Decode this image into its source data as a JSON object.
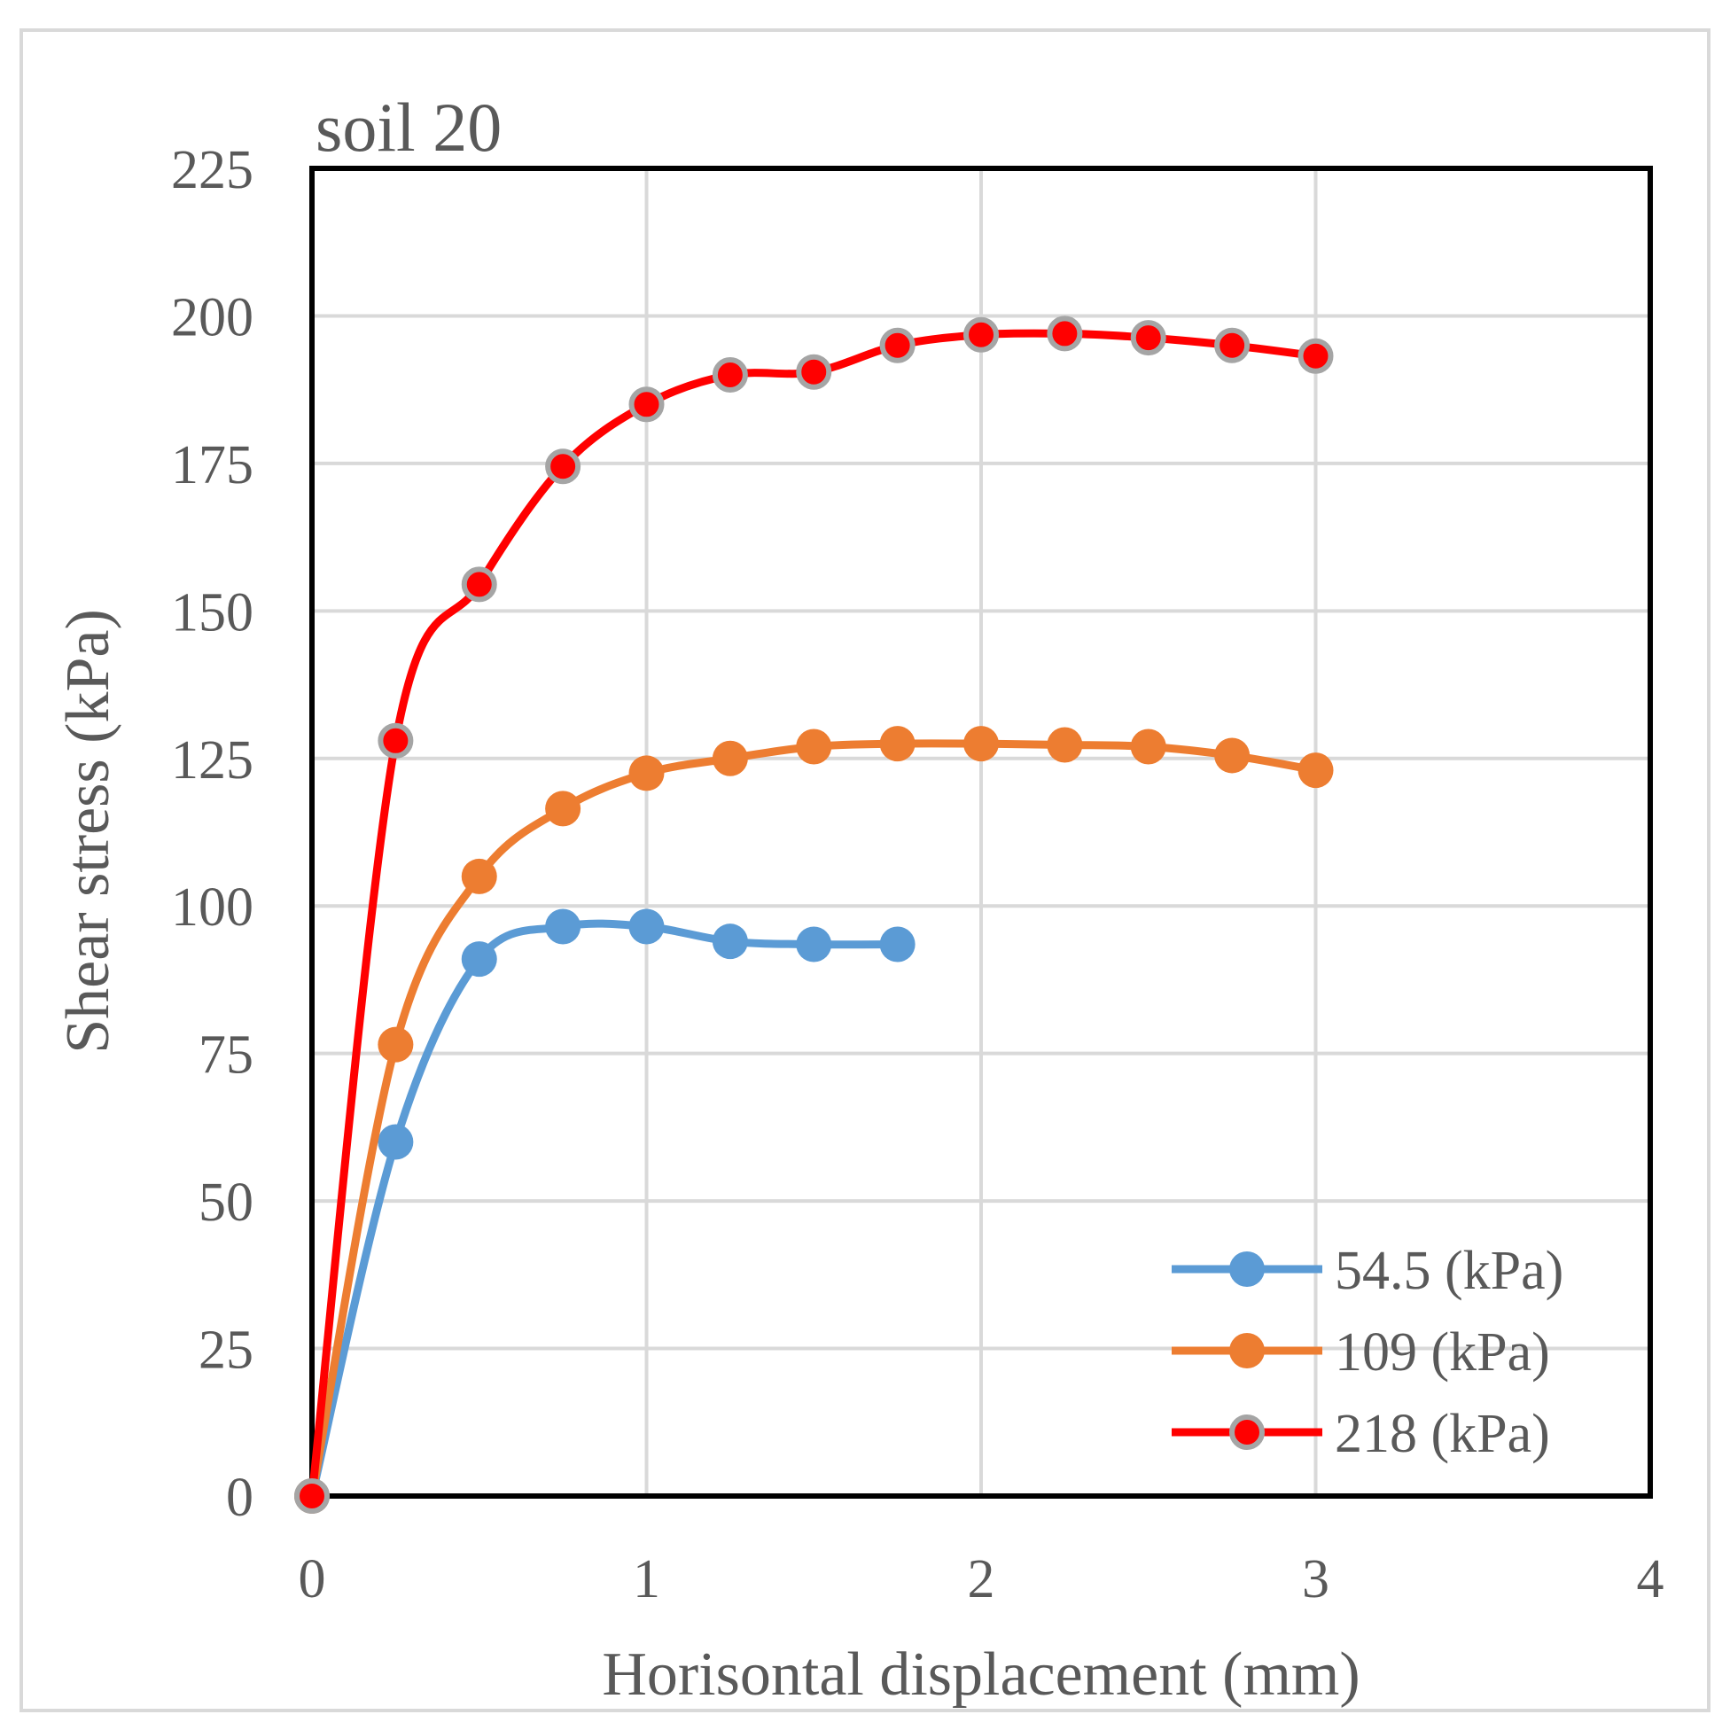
{
  "chart_data": {
    "type": "line",
    "title": "soil 20",
    "xlabel": "Horisontal displacement (mm)",
    "ylabel": "Shear stress (kPa)",
    "xlim": [
      0,
      4
    ],
    "ylim": [
      0,
      225
    ],
    "xticks": [
      0,
      1,
      2,
      3,
      4
    ],
    "yticks": [
      0,
      25,
      50,
      75,
      100,
      125,
      150,
      175,
      200,
      225
    ],
    "grid": true,
    "legend_position": "bottom-right",
    "series": [
      {
        "name": "54.5 (kPa)",
        "color": "#5b9bd5",
        "marker_fill": "#5b9bd5",
        "marker_edge": "#5b9bd5",
        "x": [
          0,
          0.25,
          0.5,
          0.75,
          1.0,
          1.25,
          1.5,
          1.75
        ],
        "y": [
          0,
          60,
          91,
          96.5,
          96.5,
          94,
          93.5,
          93.5
        ]
      },
      {
        "name": "109 (kPa)",
        "color": "#ed7d31",
        "marker_fill": "#ed7d31",
        "marker_edge": "#ed7d31",
        "x": [
          0,
          0.25,
          0.5,
          0.75,
          1.0,
          1.25,
          1.5,
          1.75,
          2.0,
          2.25,
          2.5,
          2.75,
          3.0
        ],
        "y": [
          0,
          76.5,
          105,
          116.5,
          122.5,
          125,
          127,
          127.5,
          127.5,
          127.3,
          127,
          125.5,
          123
        ]
      },
      {
        "name": "218 (kPa)",
        "color": "#ff0000",
        "marker_fill": "#ff0000",
        "marker_edge": "#a5a5a5",
        "x": [
          0,
          0.25,
          0.5,
          0.75,
          1.0,
          1.25,
          1.5,
          1.75,
          2.0,
          2.25,
          2.5,
          2.75,
          3.0
        ],
        "y": [
          0,
          128,
          154.5,
          174.5,
          185,
          190,
          190.5,
          195,
          196.8,
          197,
          196.3,
          195,
          193.2
        ]
      }
    ]
  }
}
